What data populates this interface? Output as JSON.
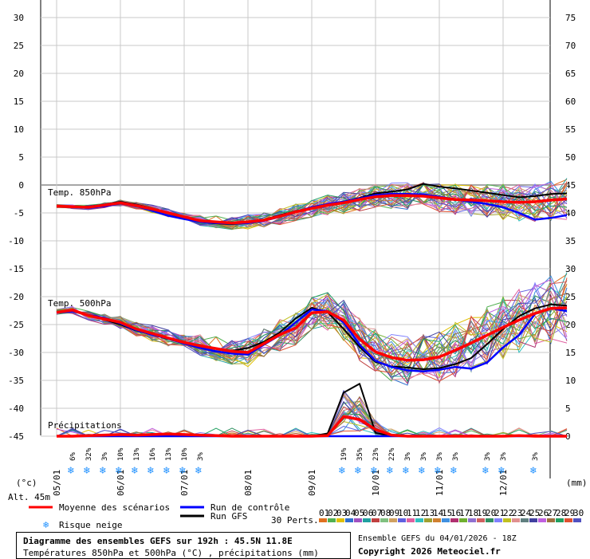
{
  "chart_data": {
    "type": "line",
    "y_left": {
      "ticks": [
        30,
        25,
        20,
        15,
        10,
        5,
        0,
        -5,
        -10,
        -15,
        -20,
        -25,
        -30,
        -35,
        -40,
        -45
      ],
      "unit_label": "(°c)"
    },
    "y_right": {
      "ticks": [
        75,
        70,
        65,
        60,
        55,
        50,
        45,
        40,
        35,
        30,
        25,
        20,
        15,
        10,
        5,
        0
      ],
      "unit_label": "(mm)"
    },
    "x_dates": [
      "05/01",
      "06/01",
      "07/01",
      "08/01",
      "09/01",
      "10/01",
      "11/01",
      "12/01"
    ],
    "altitude_label": "Alt. 45m",
    "panels": {
      "t850": {
        "label": "Temp. 850hPa",
        "x": [
          0,
          6,
          12,
          18,
          24,
          30,
          36,
          42,
          48,
          54,
          60,
          66,
          72,
          78,
          84,
          90,
          96,
          102,
          108,
          114,
          120,
          126,
          132,
          138,
          144,
          150,
          156,
          162,
          168,
          174,
          180,
          186,
          192
        ],
        "mean": [
          -3.8,
          -3.9,
          -4.0,
          -3.6,
          -3.2,
          -3.7,
          -4.3,
          -5.0,
          -5.7,
          -6.4,
          -6.6,
          -6.8,
          -6.6,
          -6.3,
          -5.6,
          -4.8,
          -4.2,
          -3.6,
          -3.2,
          -2.6,
          -2.1,
          -1.9,
          -1.9,
          -2.0,
          -2.3,
          -2.6,
          -2.7,
          -2.8,
          -3.0,
          -3.1,
          -3.0,
          -2.7,
          -2.5
        ],
        "control": [
          -3.8,
          -3.9,
          -4.1,
          -3.8,
          -3.3,
          -3.8,
          -4.6,
          -5.5,
          -6.1,
          -6.6,
          -6.8,
          -6.9,
          -6.8,
          -6.4,
          -5.7,
          -4.8,
          -4.0,
          -3.4,
          -3.0,
          -2.4,
          -1.8,
          -1.6,
          -1.6,
          -1.7,
          -2.1,
          -2.6,
          -3.0,
          -3.4,
          -4.0,
          -5.0,
          -6.2,
          -5.9,
          -5.4
        ],
        "gfs": [
          -3.8,
          -3.8,
          -3.9,
          -3.5,
          -3.0,
          -3.5,
          -4.2,
          -5.1,
          -5.9,
          -6.6,
          -6.9,
          -7.0,
          -6.8,
          -6.2,
          -5.4,
          -4.7,
          -4.1,
          -3.5,
          -3.0,
          -2.3,
          -1.5,
          -1.2,
          -0.8,
          0.2,
          -0.3,
          -0.6,
          -1.0,
          -1.4,
          -1.8,
          -2.2,
          -2.0,
          -1.6,
          -1.5
        ]
      },
      "t500": {
        "label": "Temp. 500hPa",
        "x": [
          0,
          6,
          12,
          18,
          24,
          30,
          36,
          42,
          48,
          54,
          60,
          66,
          72,
          78,
          84,
          90,
          96,
          102,
          108,
          114,
          120,
          126,
          132,
          138,
          144,
          150,
          156,
          162,
          168,
          174,
          180,
          186,
          192
        ],
        "mean": [
          -22.8,
          -22.4,
          -23.4,
          -24.0,
          -24.6,
          -25.8,
          -26.6,
          -27.4,
          -28.2,
          -28.8,
          -29.3,
          -29.8,
          -30.0,
          -28.4,
          -26.8,
          -25.6,
          -22.9,
          -22.7,
          -24.2,
          -27.6,
          -29.9,
          -30.9,
          -31.4,
          -31.3,
          -30.8,
          -29.6,
          -28.3,
          -26.9,
          -25.5,
          -24.2,
          -23.0,
          -22.1,
          -22.0
        ],
        "control": [
          -22.8,
          -22.6,
          -23.3,
          -23.8,
          -24.8,
          -26.0,
          -26.8,
          -27.5,
          -28.4,
          -29.2,
          -29.8,
          -30.2,
          -30.4,
          -28.6,
          -26.9,
          -24.6,
          -22.3,
          -22.6,
          -24.6,
          -28.6,
          -31.5,
          -32.6,
          -33.2,
          -33.4,
          -33.1,
          -32.6,
          -32.9,
          -31.8,
          -29.1,
          -26.9,
          -23.1,
          -22.1,
          -22.6
        ],
        "gfs": [
          -22.8,
          -22.6,
          -23.4,
          -24.1,
          -25.0,
          -26.1,
          -26.8,
          -27.6,
          -28.3,
          -28.9,
          -29.3,
          -29.7,
          -29.2,
          -28.1,
          -26.4,
          -23.9,
          -22.0,
          -22.8,
          -25.8,
          -29.0,
          -31.7,
          -32.5,
          -32.7,
          -33.0,
          -32.8,
          -32.1,
          -31.0,
          -28.5,
          -25.8,
          -23.5,
          -22.1,
          -21.4,
          -21.6
        ]
      },
      "precip": {
        "label": "Précipitations",
        "x": [
          0,
          6,
          12,
          18,
          24,
          30,
          36,
          42,
          48,
          54,
          60,
          66,
          72,
          78,
          84,
          90,
          96,
          102,
          108,
          114,
          120,
          126,
          132,
          138,
          144,
          150,
          156,
          162,
          168,
          174,
          180,
          186,
          192
        ],
        "mean": [
          0,
          0,
          0.1,
          0.2,
          0.3,
          0.2,
          0.3,
          0.4,
          0.3,
          0.2,
          0.1,
          0,
          0,
          0,
          0,
          0,
          0,
          0.1,
          3.5,
          3.0,
          1.2,
          0.2,
          0,
          0,
          0,
          0,
          0,
          0,
          0,
          0.1,
          0,
          0,
          0
        ],
        "control": [
          0,
          0,
          0,
          0,
          0,
          0,
          0,
          0,
          0,
          0,
          0,
          0,
          0,
          0,
          0,
          0,
          0,
          0,
          0,
          0,
          0,
          0,
          0,
          0,
          0,
          0,
          0,
          0,
          0,
          0,
          0,
          0,
          0
        ],
        "gfs": [
          0,
          0,
          0,
          0,
          0,
          0,
          0,
          0,
          0,
          0,
          0,
          0,
          0,
          0,
          0,
          0,
          0,
          0.5,
          7.8,
          9.4,
          0.6,
          0,
          0,
          0,
          0,
          0,
          0,
          0,
          0,
          0,
          0,
          0,
          0
        ]
      }
    },
    "snow_risk": [
      {
        "x": 6,
        "label": "6%"
      },
      {
        "x": 12,
        "label": "32%"
      },
      {
        "x": 18,
        "label": "3%"
      },
      {
        "x": 24,
        "label": "10%"
      },
      {
        "x": 30,
        "label": "13%"
      },
      {
        "x": 36,
        "label": "16%"
      },
      {
        "x": 42,
        "label": "13%"
      },
      {
        "x": 48,
        "label": "10%"
      },
      {
        "x": 54,
        "label": "3%"
      },
      {
        "x": 108,
        "label": "19%"
      },
      {
        "x": 114,
        "label": "35%"
      },
      {
        "x": 120,
        "label": "23%"
      },
      {
        "x": 126,
        "label": "22%"
      },
      {
        "x": 132,
        "label": "3%"
      },
      {
        "x": 138,
        "label": "3%"
      },
      {
        "x": 144,
        "label": "3%"
      },
      {
        "x": 150,
        "label": "3%"
      },
      {
        "x": 162,
        "label": "3%"
      },
      {
        "x": 168,
        "label": "3%"
      },
      {
        "x": 180,
        "label": "3%"
      }
    ],
    "legend": {
      "mean": "Moyenne des scénarios",
      "control": "Run de contrôle",
      "gfs": "Run GFS",
      "snow": "Risque neige",
      "perts_label": "30 Perts.",
      "pert_numbers": [
        "01",
        "02",
        "03",
        "04",
        "05",
        "06",
        "07",
        "08",
        "09",
        "10",
        "11",
        "12",
        "13",
        "14",
        "15",
        "16",
        "17",
        "18",
        "19",
        "20",
        "21",
        "22",
        "23",
        "24",
        "25",
        "26",
        "27",
        "28",
        "29",
        "30"
      ]
    },
    "colors": {
      "mean": "#ff0000",
      "control": "#0000ff",
      "gfs": "#000000",
      "perts": [
        "#e07020",
        "#50b050",
        "#e0c000",
        "#3070d0",
        "#a050c0",
        "#20a0a0",
        "#c04040",
        "#80c080",
        "#d0a060",
        "#6060e0",
        "#e060a0",
        "#30c0c0",
        "#a0a030",
        "#d08030",
        "#4090e0",
        "#b03070",
        "#70b030",
        "#9070d0",
        "#d06060",
        "#309060",
        "#8080ff",
        "#c0c020",
        "#e09090",
        "#608080",
        "#4040a0",
        "#c060e0",
        "#a07040",
        "#20a060",
        "#e05030",
        "#5050c0"
      ]
    }
  },
  "footer": {
    "title": "Diagramme des ensembles GEFS sur 192h : 45.5N 11.8E",
    "subtitle": "Températures 850hPa et 500hPa (°C) , précipitations (mm)",
    "run": "Ensemble GEFS du 04/01/2026 - 18Z",
    "copyright": "Copyright 2026 Meteociel.fr"
  }
}
